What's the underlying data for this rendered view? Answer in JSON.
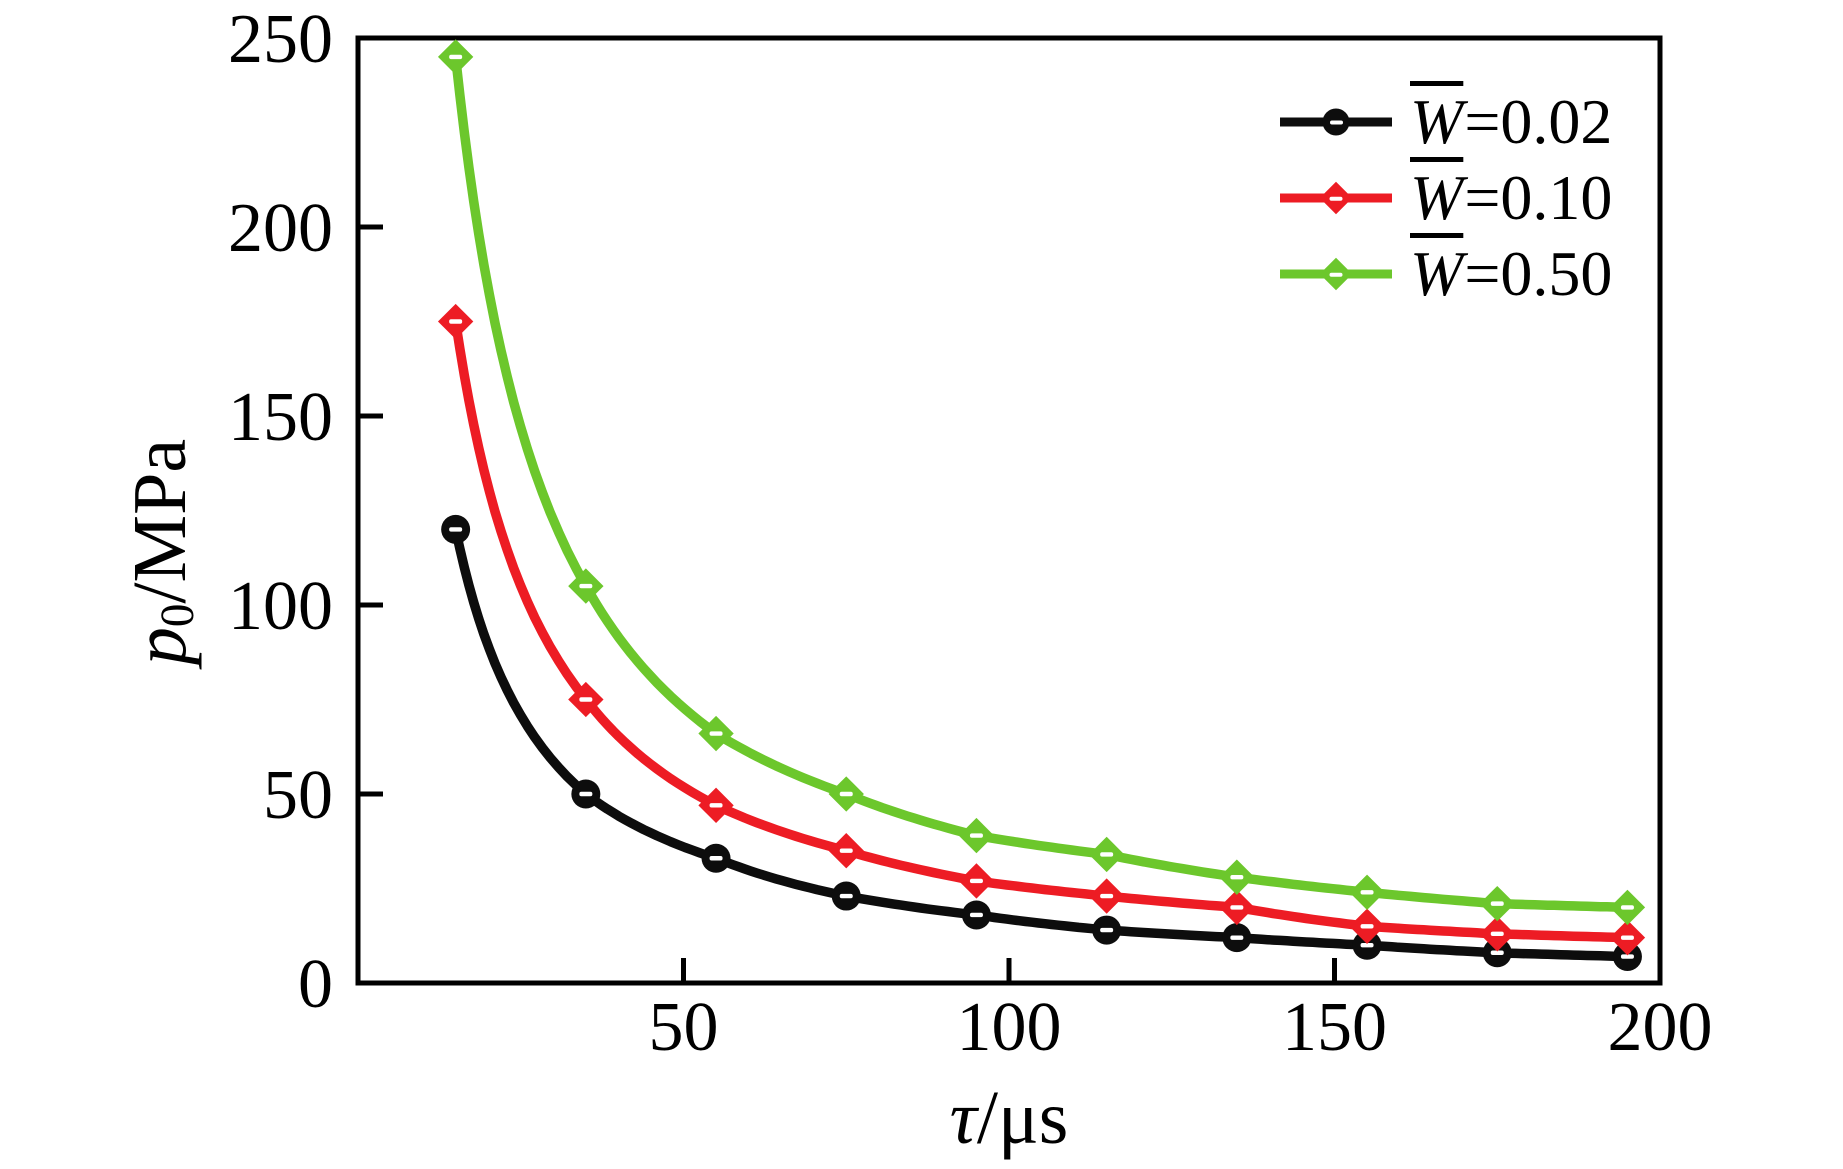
{
  "figure": {
    "background": "#ffffff",
    "frame_color": "#000000"
  },
  "chart_data": {
    "type": "line",
    "title": "",
    "xlabel_symbol": "τ",
    "xlabel_unit": "/μs",
    "ylabel_symbol": "p",
    "ylabel_subscript": "0",
    "ylabel_unit": "/MPa",
    "xlim": [
      0,
      200
    ],
    "ylim": [
      0,
      250
    ],
    "x_ticks": [
      "50",
      "100",
      "150",
      "200"
    ],
    "x_tick_values": [
      50,
      100,
      150,
      200
    ],
    "y_ticks": [
      "0",
      "50",
      "100",
      "150",
      "200",
      "250"
    ],
    "y_tick_values": [
      0,
      50,
      100,
      150,
      200,
      250
    ],
    "grid": false,
    "legend_position": "top-right-inside",
    "x": [
      15,
      35,
      55,
      75,
      95,
      115,
      135,
      155,
      175,
      195
    ],
    "series": [
      {
        "label_symbol": "W",
        "label_value": "=0.02",
        "color": "#0d0d0d",
        "marker": "circle",
        "values": [
          120,
          50,
          33,
          23,
          18,
          14,
          12,
          10,
          8,
          7
        ]
      },
      {
        "label_symbol": "W",
        "label_value": "=0.10",
        "color": "#ed1c24",
        "marker": "diamond",
        "values": [
          175,
          75,
          47,
          35,
          27,
          23,
          20,
          15,
          13,
          12
        ]
      },
      {
        "label_symbol": "W",
        "label_value": "=0.50",
        "color": "#6cc72c",
        "marker": "diamond",
        "values": [
          245,
          105,
          66,
          50,
          39,
          34,
          28,
          24,
          21,
          20
        ]
      }
    ]
  }
}
